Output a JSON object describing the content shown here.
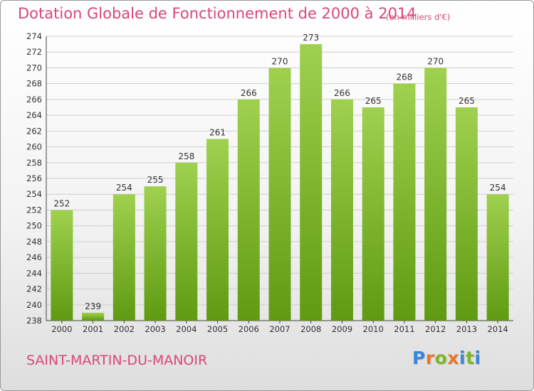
{
  "header": {
    "title": "Dotation Globale de Fonctionnement de 2000 à 2014",
    "unit_note": "(en milliers d'€)"
  },
  "footer": {
    "commune": "SAINT-MARTIN-DU-MANOIR",
    "logo_text": "Proxiti"
  },
  "colors": {
    "accent": "#d9467a",
    "bar_top": "#9fd14e",
    "bar_bottom": "#5f9a12",
    "grid": "#cfcfcf"
  },
  "chart_data": {
    "type": "bar",
    "categories": [
      "2000",
      "2001",
      "2002",
      "2003",
      "2004",
      "2005",
      "2006",
      "2007",
      "2008",
      "2009",
      "2010",
      "2011",
      "2012",
      "2013",
      "2014"
    ],
    "values": [
      252,
      239,
      254,
      255,
      258,
      261,
      266,
      270,
      273,
      266,
      265,
      268,
      270,
      265,
      254
    ],
    "ylim": [
      238,
      274
    ],
    "yticks": [
      238,
      240,
      242,
      244,
      246,
      248,
      250,
      252,
      254,
      256,
      258,
      260,
      262,
      264,
      266,
      268,
      270,
      272,
      274
    ],
    "grid": true,
    "data_labels": true
  }
}
